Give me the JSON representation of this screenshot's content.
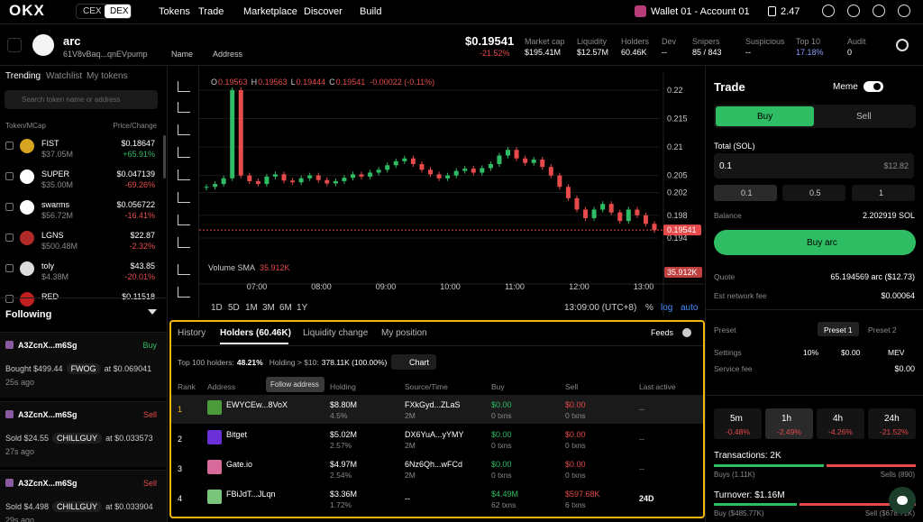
{
  "nav": {
    "logo": "OKX",
    "cex": "CEX",
    "dex": "DEX",
    "links": [
      "Tokens",
      "Trade",
      "Marketplace",
      "Discover",
      "Build"
    ],
    "wallet": "Wallet 01 - Account 01",
    "balance": "2.47"
  },
  "token": {
    "name": "arc",
    "address": "61V8vBaq...qnEVpump",
    "name_btn": "Name",
    "address_btn": "Address",
    "price": "$0.19541",
    "change": "-21.52%",
    "stats": [
      {
        "label": "Market cap",
        "value": "$195.41M"
      },
      {
        "label": "Liquidity",
        "value": "$12.57M"
      },
      {
        "label": "Holders",
        "value": "60.46K"
      },
      {
        "label": "Dev",
        "value": "--"
      },
      {
        "label": "Snipers",
        "value": "85 / 843"
      },
      {
        "label": "Suspicious",
        "value": "--"
      },
      {
        "label": "Top 10",
        "value": "17.18%"
      },
      {
        "label": "Audit",
        "value": "0"
      }
    ]
  },
  "sidebar": {
    "tabs": [
      "Trending",
      "Watchlist",
      "My tokens"
    ],
    "search": "Search token name or address",
    "col_token": "Token/MCap",
    "col_price": "Price/Change",
    "tokens": [
      {
        "symbol": "FIST",
        "mcap": "$37.05M",
        "price": "$0.18647",
        "change": "+65.91%"
      },
      {
        "symbol": "SUPER",
        "mcap": "$35.00M",
        "price": "$0.047139",
        "change": "-69.26%"
      },
      {
        "symbol": "swarms",
        "mcap": "$56.72M",
        "price": "$0.056722",
        "change": "-16.41%"
      },
      {
        "symbol": "LGNS",
        "mcap": "$500.48M",
        "price": "$22.87",
        "change": "-2.32%"
      },
      {
        "symbol": "toly",
        "mcap": "$4.38M",
        "price": "$43.85",
        "change": "-20.01%"
      },
      {
        "symbol": "RED",
        "price": "$0.11518"
      }
    ],
    "following": "Following",
    "trades": [
      {
        "trader": "A3ZcnX...m6Sg",
        "side": "Buy",
        "detail": "Bought $499.44",
        "token": "FWOG",
        "at": "at $0.069041",
        "time": "25s ago"
      },
      {
        "trader": "A3ZcnX...m6Sg",
        "side": "Sell",
        "detail": "Sold $24.55",
        "token": "CHILLGUY",
        "at": "at $0.033573",
        "time": "27s ago"
      },
      {
        "trader": "A3ZcnX...m6Sg",
        "side": "Sell",
        "detail": "Sold $4.498",
        "token": "CHILLGUY",
        "at": "at $0.033904",
        "time": "29s ago"
      }
    ]
  },
  "chart": {
    "ohlc": [
      {
        "label": "O",
        "value": "0.19563"
      },
      {
        "label": "H",
        "value": "0.19563"
      },
      {
        "label": "L",
        "value": "0.19444"
      },
      {
        "label": "C",
        "value": "0.19541"
      }
    ],
    "ohlc_change": "-0.00022 (-0.11%)",
    "volume_label": "Volume SMA",
    "volume": "35.912K",
    "last_price": 0.19541,
    "ylim": [
      0.1883,
      0.2219
    ],
    "yticks": [
      0.22,
      0.215,
      0.21,
      0.205,
      0.202,
      0.198,
      0.194
    ],
    "times": [
      "07:00",
      "08:00",
      "09:00",
      "10:00",
      "11:00",
      "12:00",
      "13:00"
    ],
    "closes": [
      0.203,
      0.2035,
      0.2045,
      0.22,
      0.205,
      0.204,
      0.2035,
      0.2048,
      0.2052,
      0.2041,
      0.2038,
      0.2045,
      0.205,
      0.2042,
      0.2036,
      0.204,
      0.2046,
      0.2052,
      0.2048,
      0.2055,
      0.206,
      0.2068,
      0.2075,
      0.208,
      0.207,
      0.206,
      0.2052,
      0.2045,
      0.205,
      0.2058,
      0.2062,
      0.2055,
      0.2063,
      0.207,
      0.2085,
      0.2095,
      0.208,
      0.2072,
      0.2078,
      0.2065,
      0.205,
      0.203,
      0.201,
      0.199,
      0.1975,
      0.199,
      0.2,
      0.1985,
      0.197,
      0.199,
      0.198,
      0.1965,
      0.1954
    ],
    "timeframes": [
      "1D",
      "5D",
      "1M",
      "3M",
      "6M",
      "1Y"
    ],
    "clock": "13:09:00 (UTC+8)",
    "pct": "%",
    "log": "log",
    "auto": "auto"
  },
  "holders": {
    "tabs": [
      "History",
      "Holders (60.46K)",
      "Liquidity change",
      "My position"
    ],
    "feeds": "Feeds",
    "top_label": "Top 100 holders:",
    "top_value": "48.21%",
    "holding_label": "Holding > $10:",
    "holding_value": "378.11K (100.00%)",
    "chart_btn": "Chart",
    "tooltip": "Follow address",
    "columns": [
      "Rank",
      "Address",
      "Holding",
      "Source/Time",
      "Buy",
      "Sell",
      "Last active"
    ],
    "rows": [
      {
        "rank": "1",
        "address": "EWYCEw...8VoX",
        "holding": "$8.80M",
        "pct": "4.5%",
        "source": "FXkGyd...ZLaS",
        "time": "2M",
        "buy": "$0.00",
        "buy_txns": "0 txns",
        "sell": "$0.00",
        "sell_txns": "0 txns",
        "last": "--"
      },
      {
        "rank": "2",
        "address": "Bitget",
        "holding": "$5.02M",
        "pct": "2.57%",
        "source": "DX6YuA...yYMY",
        "time": "2M",
        "buy": "$0.00",
        "buy_txns": "0 txns",
        "sell": "$0.00",
        "sell_txns": "0 txns",
        "last": "--"
      },
      {
        "rank": "3",
        "address": "Gate.io",
        "holding": "$4.97M",
        "pct": "2.54%",
        "source": "6Nz6Qh...wFCd",
        "time": "2M",
        "buy": "$0.00",
        "buy_txns": "0 txns",
        "sell": "$0.00",
        "sell_txns": "0 txns",
        "last": "--"
      },
      {
        "rank": "4",
        "address": "FBiJdT...JLqn",
        "holding": "$3.36M",
        "pct": "1.72%",
        "source": "--",
        "buy": "$4.49M",
        "buy_txns": "62 txns",
        "sell": "$597.68K",
        "sell_txns": "6 txns",
        "last": "24D"
      }
    ]
  },
  "trade": {
    "title": "Trade",
    "meme": "Meme",
    "buy": "Buy",
    "sell": "Sell",
    "total_label": "Total (SOL)",
    "amount": "0.1",
    "amount_usd": "$12.82",
    "presets": [
      "0.1",
      "0.5",
      "1"
    ],
    "balance_label": "Balance",
    "balance": "2.202919 SOL",
    "buy_btn": "Buy arc",
    "quote_label": "Quote",
    "quote": "65.194569 arc ($12.73)",
    "fee_label": "Est network fee",
    "fee": "$0.00064",
    "preset_label": "Preset",
    "preset1": "Preset 1",
    "preset2": "Preset 2",
    "settings_label": "Settings",
    "slippage": "10%",
    "priority": "$0.00",
    "mev": "MEV",
    "service_label": "Service fee",
    "service": "$0.00",
    "periods": [
      {
        "label": "5m",
        "change": "-0.48%"
      },
      {
        "label": "1h",
        "change": "-2.49%"
      },
      {
        "label": "4h",
        "change": "-4.26%"
      },
      {
        "label": "24h",
        "change": "-21.52%"
      }
    ],
    "transactions": "Transactions: 2K",
    "buys": "Buys (1.11K)",
    "sells": "Sells (890)",
    "turnover": "Turnover: $1.16M",
    "turn_buy": "Buy ($485.77K)",
    "turn_sell": "Sell ($678.71K)"
  }
}
